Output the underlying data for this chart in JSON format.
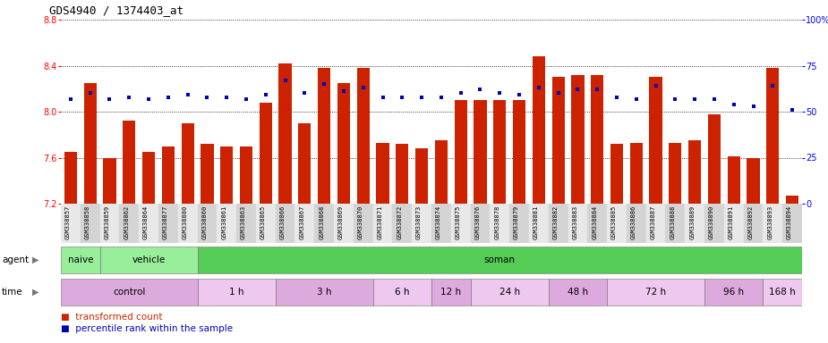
{
  "title": "GDS4940 / 1374403_at",
  "samples": [
    "GSM338857",
    "GSM338858",
    "GSM338859",
    "GSM338862",
    "GSM338864",
    "GSM338877",
    "GSM338880",
    "GSM338860",
    "GSM338861",
    "GSM338863",
    "GSM338865",
    "GSM338866",
    "GSM338867",
    "GSM338868",
    "GSM338869",
    "GSM338870",
    "GSM338871",
    "GSM338872",
    "GSM338873",
    "GSM338874",
    "GSM338875",
    "GSM338876",
    "GSM338878",
    "GSM338879",
    "GSM338881",
    "GSM338882",
    "GSM338883",
    "GSM338884",
    "GSM338885",
    "GSM338886",
    "GSM338887",
    "GSM338888",
    "GSM338889",
    "GSM338890",
    "GSM338891",
    "GSM338892",
    "GSM338893",
    "GSM338894"
  ],
  "bar_values": [
    7.65,
    8.25,
    7.6,
    7.92,
    7.65,
    7.7,
    7.9,
    7.72,
    7.7,
    7.7,
    8.08,
    8.42,
    7.9,
    8.38,
    8.25,
    8.38,
    7.73,
    7.72,
    7.68,
    7.75,
    8.1,
    8.1,
    8.1,
    8.1,
    8.48,
    8.3,
    8.32,
    8.32,
    7.72,
    7.73,
    8.3,
    7.73,
    7.75,
    7.98,
    7.61,
    7.6,
    8.38,
    7.27
  ],
  "percentile_values": [
    57,
    60,
    57,
    58,
    57,
    58,
    59,
    58,
    58,
    57,
    59,
    67,
    60,
    65,
    61,
    63,
    58,
    58,
    58,
    58,
    60,
    62,
    60,
    59,
    63,
    60,
    62,
    62,
    58,
    57,
    64,
    57,
    57,
    57,
    54,
    53,
    64,
    51
  ],
  "ylim_left": [
    7.2,
    8.8
  ],
  "ylim_right": [
    0,
    100
  ],
  "yticks_left": [
    7.2,
    7.6,
    8.0,
    8.4,
    8.8
  ],
  "yticks_right": [
    0,
    25,
    50,
    75,
    100
  ],
  "bar_color": "#CC2200",
  "dot_color": "#0000BB",
  "agent_groups": [
    {
      "label": "naive",
      "start": 0,
      "end": 2,
      "color": "#99EE99"
    },
    {
      "label": "vehicle",
      "start": 2,
      "end": 7,
      "color": "#99EE99"
    },
    {
      "label": "soman",
      "start": 7,
      "end": 38,
      "color": "#55CC55"
    }
  ],
  "time_groups": [
    {
      "label": "control",
      "start": 0,
      "end": 7,
      "color": "#DDAADD"
    },
    {
      "label": "1 h",
      "start": 7,
      "end": 11,
      "color": "#EEC8EE"
    },
    {
      "label": "3 h",
      "start": 11,
      "end": 16,
      "color": "#DDAADD"
    },
    {
      "label": "6 h",
      "start": 16,
      "end": 19,
      "color": "#EEC8EE"
    },
    {
      "label": "12 h",
      "start": 19,
      "end": 21,
      "color": "#DDAADD"
    },
    {
      "label": "24 h",
      "start": 21,
      "end": 25,
      "color": "#EEC8EE"
    },
    {
      "label": "48 h",
      "start": 25,
      "end": 28,
      "color": "#DDAADD"
    },
    {
      "label": "72 h",
      "start": 28,
      "end": 33,
      "color": "#EEC8EE"
    },
    {
      "label": "96 h",
      "start": 33,
      "end": 36,
      "color": "#DDAADD"
    },
    {
      "label": "168 h",
      "start": 36,
      "end": 38,
      "color": "#EEC8EE"
    }
  ],
  "fig_width": 9.25,
  "fig_height": 3.84,
  "dpi": 100
}
